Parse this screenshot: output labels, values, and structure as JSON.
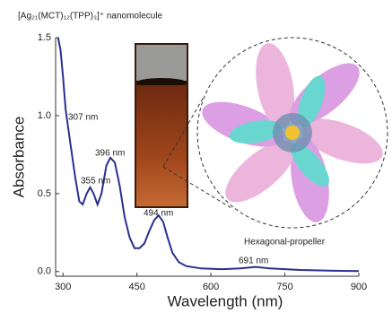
{
  "chart_data": {
    "type": "line",
    "title": "[Ag₂₁(MCT)₁₂(TPP)₃]⁺ nanomolecule",
    "x_label": "Wavelength (nm)",
    "y_label": "Absorbance",
    "x": [
      290,
      295,
      300,
      305,
      307,
      315,
      325,
      333,
      340,
      348,
      355,
      362,
      370,
      378,
      388,
      396,
      405,
      415,
      425,
      435,
      445,
      455,
      465,
      475,
      485,
      494,
      503,
      512,
      522,
      535,
      550,
      580,
      620,
      660,
      691,
      720,
      780,
      850,
      900
    ],
    "series": [
      {
        "name": "Absorbance",
        "color": "#2b2f8f",
        "values": [
          1.5,
          1.42,
          1.25,
          1.05,
          1.0,
          0.82,
          0.6,
          0.45,
          0.43,
          0.5,
          0.54,
          0.5,
          0.43,
          0.5,
          0.68,
          0.73,
          0.7,
          0.55,
          0.35,
          0.22,
          0.15,
          0.15,
          0.18,
          0.26,
          0.33,
          0.36,
          0.32,
          0.22,
          0.12,
          0.06,
          0.035,
          0.02,
          0.015,
          0.02,
          0.03,
          0.02,
          0.01,
          0.005,
          0.003
        ]
      }
    ],
    "xlim": [
      285,
      900
    ],
    "xticks": [
      300,
      450,
      600,
      750,
      900
    ],
    "ylim": [
      -0.03,
      1.5
    ],
    "yticks": [
      {
        "value": 0,
        "label": "0.0"
      },
      {
        "value": 0.5,
        "label": "0.5"
      },
      {
        "value": 1,
        "label": "1.0"
      },
      {
        "value": 1.5,
        "label": "1.5"
      }
    ],
    "annotations": [
      "307 nm",
      "355 nm",
      "396 nm",
      "494 nm",
      "691 nm",
      "Hexagonal-propeller"
    ]
  }
}
